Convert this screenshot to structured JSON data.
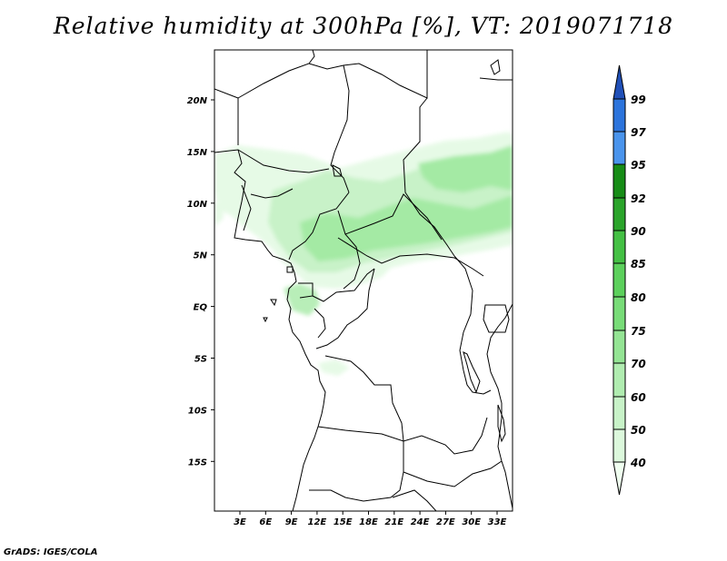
{
  "title": "Relative humidity at 300hPa [%], VT: 2019071718",
  "credit": "GrADS: IGES/COLA",
  "map": {
    "lon_range": [
      0,
      35
    ],
    "lat_range": [
      -20,
      24.5
    ],
    "lat_ticks": [
      "20N",
      "15N",
      "10N",
      "5N",
      "EQ",
      "5S",
      "10S",
      "15S"
    ],
    "lon_ticks": [
      "3E",
      "6E",
      "9E",
      "12E",
      "15E",
      "18E",
      "21E",
      "24E",
      "27E",
      "30E",
      "33E"
    ]
  },
  "colorbar": {
    "levels": [
      "40",
      "50",
      "60",
      "70",
      "75",
      "80",
      "85",
      "90",
      "92",
      "95",
      "97",
      "99"
    ],
    "colors": [
      "#f0fff0",
      "#dcf8dc",
      "#c8f2c8",
      "#b0ecb0",
      "#94e494",
      "#78dc78",
      "#5cd05c",
      "#44c044",
      "#2aa42a",
      "#168c16",
      "#4a94ec",
      "#2c74dc",
      "#2050b8"
    ]
  }
}
